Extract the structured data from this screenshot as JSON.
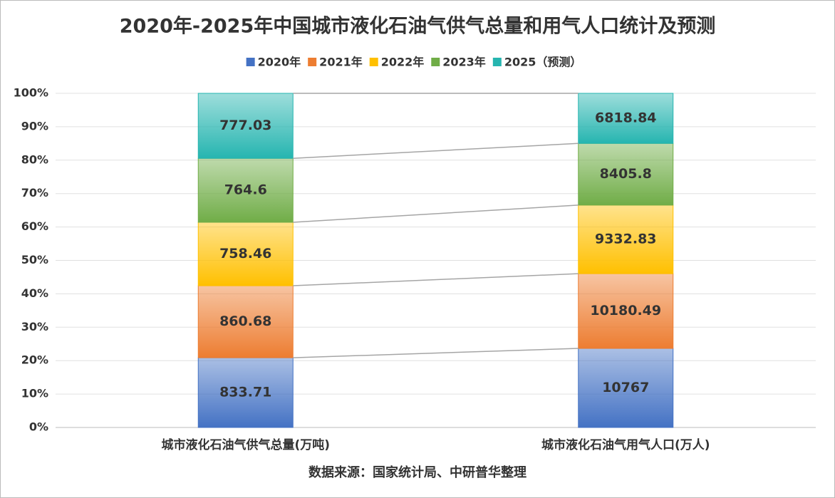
{
  "chart_data": {
    "type": "bar",
    "stacked": "percent",
    "title": "2020年-2025年中国城市液化石油气供气总量和用气人口统计及预测",
    "footnote": "数据来源：国家统计局、中研普华整理",
    "categories": [
      "城市液化石油气供气总量(万吨)",
      "城市液化石油气用气人口(万人)"
    ],
    "series": [
      {
        "name": "2020年",
        "color": "#4472c4",
        "values": [
          833.71,
          10767
        ]
      },
      {
        "name": "2021年",
        "color": "#ed7d31",
        "values": [
          860.68,
          10180.49
        ]
      },
      {
        "name": "2022年",
        "color": "#ffc000",
        "values": [
          758.46,
          9332.83
        ]
      },
      {
        "name": "2023年",
        "color": "#70ad47",
        "values": [
          764.6,
          8405.8
        ]
      },
      {
        "name": "2025（预测）",
        "color": "#26b5b0",
        "values": [
          777.03,
          6818.84
        ]
      }
    ],
    "ylim": [
      0,
      100
    ],
    "yticks": [
      {
        "value": 0,
        "label": "0%"
      },
      {
        "value": 10,
        "label": "10%"
      },
      {
        "value": 20,
        "label": "20%"
      },
      {
        "value": 30,
        "label": "30%"
      },
      {
        "value": 40,
        "label": "40%"
      },
      {
        "value": 50,
        "label": "50%"
      },
      {
        "value": 60,
        "label": "60%"
      },
      {
        "value": 70,
        "label": "70%"
      },
      {
        "value": 80,
        "label": "80%"
      },
      {
        "value": 90,
        "label": "90%"
      },
      {
        "value": 100,
        "label": "100%"
      }
    ],
    "grid": true,
    "legend": "top"
  }
}
